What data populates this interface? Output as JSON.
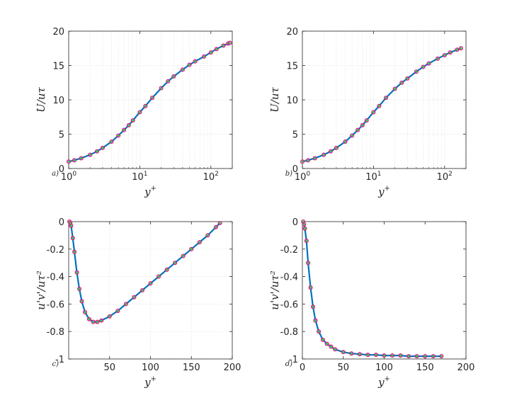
{
  "colors": {
    "line": "#0072bd",
    "magenta": "#ff00ff",
    "green": "#22dd22",
    "red": "#dd1111",
    "grid": "#d9d9d9",
    "axis": "#262626"
  },
  "chart_data": [
    {
      "type": "line",
      "panel": "a)",
      "xlabel": "y+",
      "ylabel": "U/uτ",
      "xscale": "log",
      "xlim": [
        1,
        200
      ],
      "ylim": [
        0,
        20
      ],
      "xticks": [
        "10^0",
        "10^1",
        "10^2"
      ],
      "yticks": [
        "0",
        "5",
        "10",
        "15",
        "20"
      ],
      "grid": true,
      "x": [
        1,
        1.2,
        1.5,
        2,
        2.5,
        3,
        4,
        5,
        6,
        7,
        8,
        10,
        12,
        15,
        20,
        25,
        30,
        40,
        50,
        60,
        80,
        100,
        120,
        150,
        175,
        185
      ],
      "y": [
        1.0,
        1.2,
        1.5,
        2.0,
        2.5,
        3.0,
        3.9,
        4.8,
        5.6,
        6.3,
        7.0,
        8.2,
        9.1,
        10.3,
        11.7,
        12.7,
        13.4,
        14.4,
        15.1,
        15.6,
        16.3,
        16.9,
        17.4,
        17.9,
        18.2,
        18.3
      ]
    },
    {
      "type": "line",
      "panel": "b)",
      "xlabel": "y+",
      "ylabel": "U/uτ",
      "xscale": "log",
      "xlim": [
        1,
        200
      ],
      "ylim": [
        0,
        20
      ],
      "xticks": [
        "10^0",
        "10^1",
        "10^2"
      ],
      "yticks": [
        "0",
        "5",
        "10",
        "15",
        "20"
      ],
      "grid": true,
      "x": [
        1,
        1.2,
        1.5,
        2,
        2.5,
        3,
        4,
        5,
        6,
        7,
        8,
        10,
        12,
        15,
        20,
        25,
        30,
        40,
        50,
        60,
        80,
        100,
        120,
        150,
        170
      ],
      "y": [
        1.0,
        1.2,
        1.5,
        2.0,
        2.5,
        3.0,
        3.9,
        4.8,
        5.6,
        6.3,
        7.0,
        8.2,
        9.1,
        10.3,
        11.6,
        12.5,
        13.1,
        14.1,
        14.8,
        15.3,
        16.0,
        16.5,
        16.9,
        17.3,
        17.5
      ]
    },
    {
      "type": "line",
      "panel": "c)",
      "xlabel": "y+",
      "ylabel": "u'v'/uτ²",
      "xlim": [
        0,
        200
      ],
      "ylim": [
        -1,
        0
      ],
      "xticks": [
        "50",
        "100",
        "150",
        "200"
      ],
      "yticks": [
        "0",
        "-0.2",
        "-0.4",
        "-0.6",
        "-0.8",
        "-1"
      ],
      "grid": true,
      "x": [
        1,
        2,
        3,
        5,
        7,
        10,
        13,
        16,
        20,
        25,
        30,
        35,
        40,
        50,
        60,
        70,
        80,
        90,
        100,
        110,
        120,
        130,
        140,
        150,
        160,
        170,
        180,
        185
      ],
      "y": [
        0,
        -0.01,
        -0.03,
        -0.12,
        -0.22,
        -0.37,
        -0.49,
        -0.58,
        -0.66,
        -0.71,
        -0.73,
        -0.73,
        -0.72,
        -0.69,
        -0.65,
        -0.6,
        -0.55,
        -0.5,
        -0.45,
        -0.4,
        -0.35,
        -0.3,
        -0.25,
        -0.2,
        -0.15,
        -0.1,
        -0.04,
        -0.01
      ]
    },
    {
      "type": "line",
      "panel": "d)",
      "xlabel": "y+",
      "ylabel": "u'v'/uτ²",
      "xlim": [
        0,
        200
      ],
      "ylim": [
        -1,
        0
      ],
      "xticks": [
        "0",
        "50",
        "100",
        "150",
        "200"
      ],
      "yticks": [
        "0",
        "-0.2",
        "-0.4",
        "-0.6",
        "-0.8",
        "-1"
      ],
      "grid": false,
      "x": [
        1,
        2,
        3,
        5,
        7,
        10,
        13,
        16,
        20,
        25,
        30,
        35,
        40,
        50,
        60,
        70,
        80,
        90,
        100,
        110,
        120,
        130,
        140,
        150,
        160,
        170
      ],
      "y": [
        0,
        -0.02,
        -0.05,
        -0.14,
        -0.3,
        -0.48,
        -0.62,
        -0.72,
        -0.8,
        -0.86,
        -0.89,
        -0.91,
        -0.93,
        -0.95,
        -0.96,
        -0.965,
        -0.97,
        -0.97,
        -0.975,
        -0.975,
        -0.975,
        -0.98,
        -0.98,
        -0.98,
        -0.98,
        -0.98
      ]
    }
  ]
}
